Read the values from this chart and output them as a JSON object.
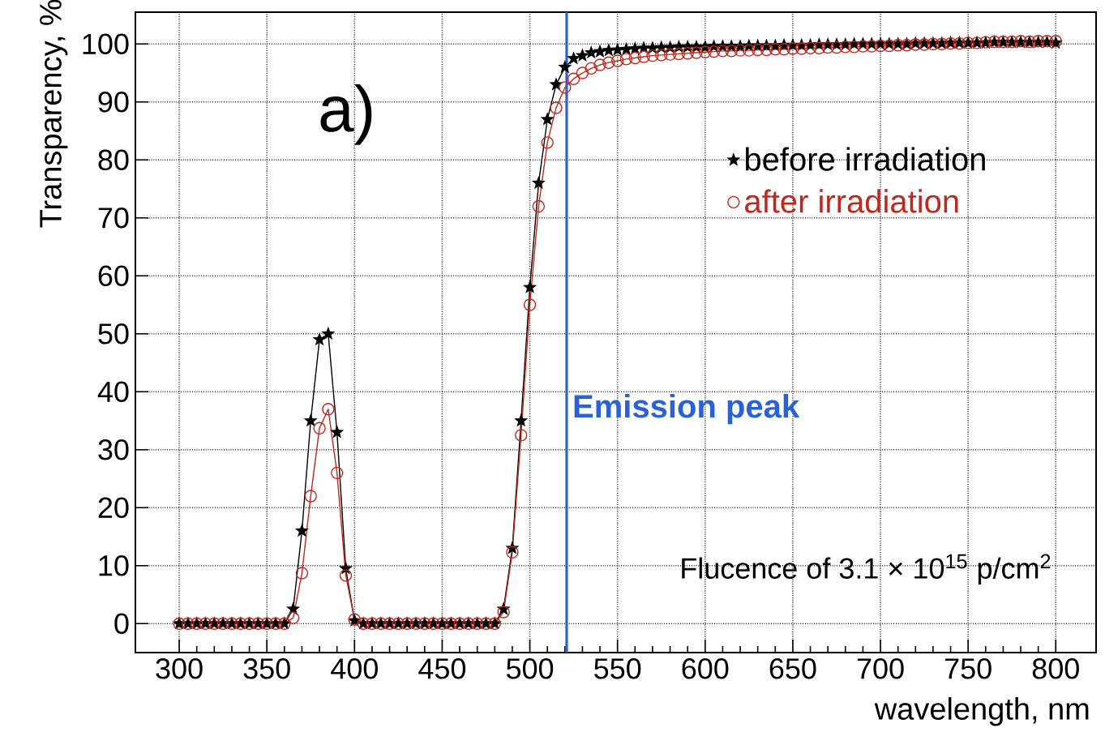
{
  "chart_data": {
    "type": "line",
    "xlabel": "wavelength, nm",
    "ylabel": "Transparency, %",
    "annotations": [
      "a)",
      "Flucence of 3.1 × 10$^{15}$ p/cm$^{2}$"
    ],
    "x": [
      300,
      305,
      310,
      315,
      320,
      325,
      330,
      335,
      340,
      345,
      350,
      355,
      360,
      365,
      370,
      375,
      380,
      385,
      390,
      395,
      400,
      405,
      410,
      415,
      420,
      425,
      430,
      435,
      440,
      445,
      450,
      455,
      460,
      465,
      470,
      475,
      480,
      485,
      490,
      495,
      500,
      505,
      510,
      515,
      520,
      525,
      530,
      535,
      540,
      545,
      550,
      555,
      560,
      565,
      570,
      575,
      580,
      585,
      590,
      595,
      600,
      605,
      610,
      615,
      620,
      625,
      630,
      635,
      640,
      645,
      650,
      655,
      660,
      665,
      670,
      675,
      680,
      685,
      690,
      695,
      700,
      705,
      710,
      715,
      720,
      725,
      730,
      735,
      740,
      745,
      750,
      755,
      760,
      765,
      770,
      775,
      780,
      785,
      790,
      795,
      800
    ],
    "series": [
      {
        "name": "before irradiation",
        "color": "#000000",
        "marker": "star",
        "values": [
          0,
          0,
          0,
          0,
          0,
          0,
          0,
          0,
          0,
          0,
          0,
          0,
          0,
          2.5,
          16,
          35,
          49,
          50,
          33,
          9.5,
          0.5,
          0,
          0,
          0,
          0,
          0,
          0,
          0,
          0,
          0,
          0,
          0,
          0,
          0,
          0,
          0,
          0,
          2.5,
          13,
          35,
          58,
          76,
          87,
          93,
          96,
          97.5,
          98,
          98.5,
          98.7,
          98.9,
          99,
          99.1,
          99.2,
          99.3,
          99.3,
          99.4,
          99.4,
          99.5,
          99.5,
          99.5,
          99.5,
          99.6,
          99.6,
          99.6,
          99.6,
          99.7,
          99.7,
          99.7,
          99.7,
          99.8,
          99.8,
          99.8,
          99.8,
          99.9,
          99.9,
          99.9,
          99.9,
          100,
          100,
          100,
          100,
          100,
          100,
          100,
          100.1,
          100.1,
          100.1,
          100.1,
          100.2,
          100.2,
          100.2,
          100.2,
          100.2,
          100.3,
          100.3,
          100.3,
          100.3,
          100.3,
          100.3,
          100.3,
          100.2
        ]
      },
      {
        "name": "after irradiation",
        "color": "#c0281e",
        "marker": "circle",
        "values": [
          0,
          0,
          0,
          0,
          0,
          0,
          0,
          0,
          0,
          0,
          0,
          0,
          0,
          1,
          8.7,
          22,
          33.7,
          37,
          26,
          8.3,
          0.7,
          0,
          0,
          0,
          0,
          0,
          0,
          0,
          0,
          0,
          0,
          0,
          0,
          0,
          0,
          0,
          0,
          2,
          12.3,
          32.5,
          55,
          72,
          83,
          89,
          92.5,
          94,
          95,
          95.8,
          96.4,
          96.8,
          97.1,
          97.4,
          97.6,
          97.8,
          98,
          98.1,
          98.2,
          98.3,
          98.4,
          98.5,
          98.6,
          98.7,
          98.8,
          98.8,
          98.9,
          98.9,
          99,
          99,
          99.1,
          99.1,
          99.2,
          99.2,
          99.3,
          99.3,
          99.4,
          99.4,
          99.5,
          99.5,
          99.6,
          99.6,
          99.7,
          99.7,
          99.8,
          99.8,
          99.9,
          99.9,
          100,
          100,
          100.1,
          100.1,
          100.2,
          100.2,
          100.3,
          100.4,
          100.4,
          100.4,
          100.5,
          100.4,
          100.5,
          100.5,
          100.5
        ]
      }
    ],
    "xlim": [
      275,
      823
    ],
    "ylim": [
      -5,
      105.5
    ],
    "xticks": [
      300,
      350,
      400,
      450,
      500,
      550,
      600,
      650,
      700,
      750,
      800
    ],
    "yticks": [
      0,
      10,
      20,
      30,
      40,
      50,
      60,
      70,
      80,
      90,
      100
    ],
    "ref_lines": [
      {
        "axis": "x",
        "value": 521,
        "label": "Emission peak",
        "color": "#2a62d6"
      }
    ],
    "grid": true,
    "legend": "right",
    "line_style": "solid"
  }
}
